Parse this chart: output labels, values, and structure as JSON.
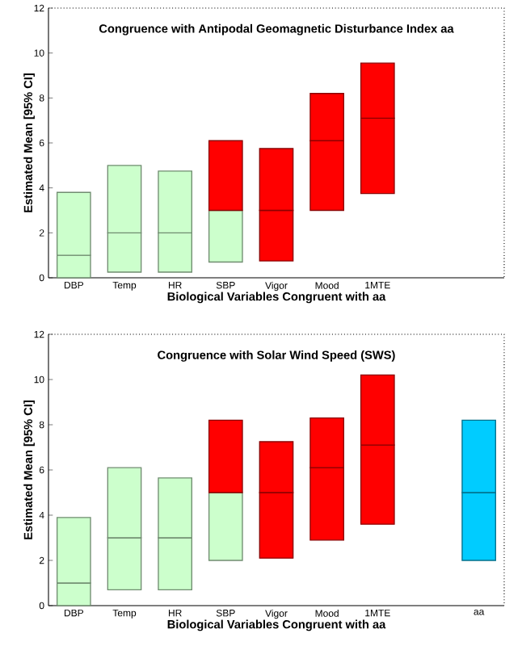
{
  "chart_data": [
    {
      "type": "bar",
      "title": "Congruence with Antipodal Geomagnetic Disturbance Index aa",
      "xlabel": "Biological Variables Congruent with aa",
      "ylabel": "Estimated Mean [95% CI]",
      "categories": [
        "DBP",
        "Temp",
        "HR",
        "SBP",
        "Vigor",
        "Mood",
        "1MTE",
        null,
        null
      ],
      "stacked": true,
      "series": [
        {
          "base": [
            0,
            0.25,
            0.25,
            0.7,
            0.75,
            3,
            3.75,
            null,
            null
          ],
          "values": [
            1,
            1.75,
            1.75,
            2.3,
            2.25,
            3.1,
            3.35,
            null,
            null
          ],
          "colors": [
            "#ccffcc",
            "#ccffcc",
            "#ccffcc",
            "#ccffcc",
            "#ff0000",
            "#ff0000",
            "#ff0000",
            null,
            null
          ]
        },
        {
          "values": [
            2.8,
            3,
            2.75,
            3.1,
            2.75,
            2.1,
            2.45,
            null,
            null
          ],
          "colors": [
            "#ccffcc",
            "#ccffcc",
            "#ccffcc",
            "#ff0000",
            "#ff0000",
            "#ff0000",
            "#ff0000",
            null,
            null
          ]
        }
      ],
      "ylim": [
        0,
        12
      ],
      "yticks": [
        0,
        2,
        4,
        6,
        8,
        10,
        12
      ]
    },
    {
      "type": "bar",
      "title": "Congruence with Solar Wind Speed (SWS)",
      "xlabel": "Biological Variables Congruent with aa",
      "ylabel": "Estimated Mean [95% CI]",
      "categories": [
        "DBP",
        "Temp",
        "HR",
        "SBP",
        "Vigor",
        "Mood",
        "1MTE",
        null,
        "aa"
      ],
      "stacked": true,
      "series": [
        {
          "base": [
            0,
            0.7,
            0.7,
            2,
            2.1,
            2.9,
            3.6,
            null,
            2
          ],
          "values": [
            1,
            2.3,
            2.3,
            3,
            2.9,
            3.2,
            3.5,
            null,
            3
          ],
          "colors": [
            "#ccffcc",
            "#ccffcc",
            "#ccffcc",
            "#ccffcc",
            "#ff0000",
            "#ff0000",
            "#ff0000",
            null,
            "#00ccff"
          ]
        },
        {
          "values": [
            2.9,
            3.1,
            2.65,
            3.2,
            2.25,
            2.2,
            3.1,
            null,
            3.2
          ],
          "colors": [
            "#ccffcc",
            "#ccffcc",
            "#ccffcc",
            "#ff0000",
            "#ff0000",
            "#ff0000",
            "#ff0000",
            null,
            "#00ccff"
          ]
        }
      ],
      "ylim": [
        0,
        12
      ],
      "yticks": [
        0,
        2,
        4,
        6,
        8,
        10,
        12
      ]
    }
  ]
}
